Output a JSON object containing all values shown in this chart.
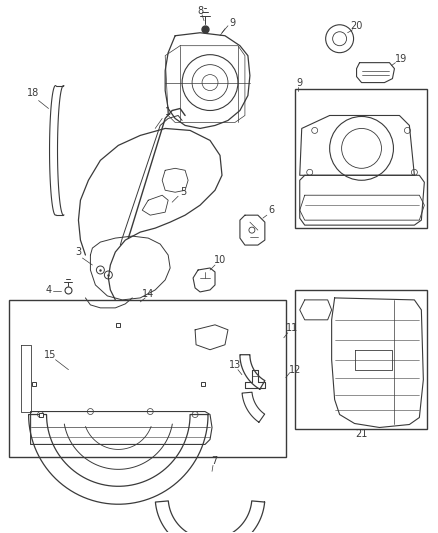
{
  "bg_color": "#ffffff",
  "line_color": "#3a3a3a",
  "fig_width": 4.38,
  "fig_height": 5.33,
  "dpi": 100,
  "label_fontsize": 7.0,
  "leader_lw": 0.5,
  "part_lw": 0.7
}
